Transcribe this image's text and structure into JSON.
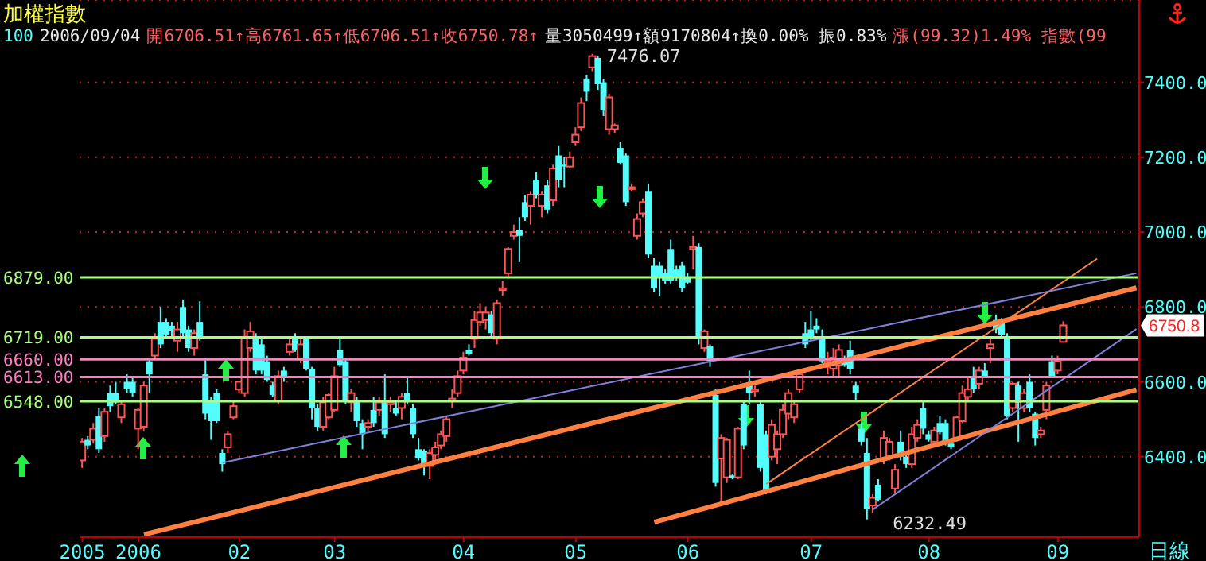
{
  "chart_data": {
    "type": "candlestick",
    "title": "加權指數",
    "annotations": [
      "100",
      "2006/09/04",
      "開6706.51↑高6761.65↑低6706.51↑收6750.78↑",
      "量3050499↑額9170804↑換0.00% 振0.83%",
      "漲(99.32)1.49% 指數(99",
      "7476.07",
      "6232.49",
      "6750.8",
      "日線"
    ],
    "categories": [
      "2005",
      null,
      null,
      null,
      null,
      null,
      null,
      null,
      null,
      null,
      "2006",
      null,
      null,
      null,
      null,
      null,
      null,
      null,
      null,
      null,
      null,
      null,
      null,
      null,
      null,
      null,
      null,
      null,
      "02",
      null,
      null,
      null,
      null,
      null,
      null,
      null,
      null,
      null,
      null,
      null,
      null,
      null,
      null,
      null,
      null,
      "03",
      null,
      null,
      null,
      null,
      null,
      null,
      null,
      null,
      null,
      null,
      null,
      null,
      null,
      null,
      null,
      null,
      null,
      null,
      null,
      null,
      null,
      null,
      "04",
      null,
      null,
      null,
      null,
      null,
      null,
      null,
      null,
      null,
      null,
      null,
      null,
      null,
      null,
      null,
      null,
      null,
      null,
      null,
      "05",
      null,
      null,
      null,
      null,
      null,
      null,
      null,
      null,
      null,
      null,
      null,
      null,
      null,
      null,
      null,
      null,
      null,
      null,
      null,
      "06",
      null,
      null,
      null,
      null,
      null,
      null,
      null,
      null,
      null,
      null,
      null,
      null,
      null,
      null,
      null,
      null,
      null,
      null,
      null,
      null,
      null,
      "07",
      null,
      null,
      null,
      null,
      null,
      null,
      null,
      null,
      null,
      null,
      null,
      null,
      null,
      null,
      null,
      null,
      null,
      null,
      null,
      null,
      "08",
      null,
      null,
      null,
      null,
      null,
      null,
      null,
      null,
      null,
      null,
      null,
      null,
      null,
      null,
      null,
      null,
      null,
      null,
      null,
      null,
      null,
      null,
      "09",
      null,
      null,
      null,
      null,
      null,
      null,
      null,
      null,
      null,
      null,
      null,
      null,
      null,
      null
    ],
    "ohlc": [
      [
        6390,
        6450,
        6370,
        6440
      ],
      [
        6445,
        6455,
        6420,
        6430
      ],
      [
        6445,
        6490,
        6435,
        6475
      ],
      [
        6510,
        6530,
        6410,
        6420
      ],
      [
        6455,
        6530,
        6440,
        6520
      ],
      [
        6570,
        6590,
        6520,
        6535
      ],
      [
        6570,
        6600,
        6540,
        6545
      ],
      [
        6505,
        6550,
        6490,
        6540
      ],
      [
        6600,
        6620,
        6570,
        6580
      ],
      [
        6600,
        6610,
        6560,
        6570
      ],
      [
        6475,
        6530,
        6420,
        6525
      ],
      [
        6480,
        6600,
        6470,
        6590
      ],
      [
        6655,
        6660,
        6570,
        6620
      ],
      [
        6670,
        6730,
        6660,
        6715
      ],
      [
        6760,
        6800,
        6690,
        6700
      ],
      [
        6760,
        6770,
        6720,
        6725
      ],
      [
        6750,
        6760,
        6720,
        6735
      ],
      [
        6710,
        6760,
        6680,
        6740
      ],
      [
        6800,
        6820,
        6720,
        6730
      ],
      [
        6740,
        6750,
        6680,
        6690
      ],
      [
        6690,
        6740,
        6670,
        6730
      ],
      [
        6760,
        6815,
        6710,
        6720
      ],
      [
        6620,
        6660,
        6500,
        6515
      ],
      [
        6550,
        6560,
        6445,
        6495
      ],
      [
        6570,
        6580,
        6490,
        6495
      ],
      [
        6410,
        6420,
        6360,
        6380
      ],
      [
        6425,
        6470,
        6410,
        6460
      ],
      [
        6505,
        6550,
        6500,
        6535
      ],
      [
        6580,
        6600,
        6570,
        6600
      ],
      [
        6570,
        6740,
        6560,
        6720
      ],
      [
        6690,
        6760,
        6680,
        6735
      ],
      [
        6715,
        6730,
        6620,
        6630
      ],
      [
        6700,
        6720,
        6620,
        6630
      ],
      [
        6655,
        6670,
        6600,
        6605
      ],
      [
        6590,
        6600,
        6560,
        6565
      ],
      [
        6550,
        6630,
        6540,
        6615
      ],
      [
        6630,
        6640,
        6600,
        6610
      ],
      [
        6680,
        6720,
        6670,
        6700
      ],
      [
        6720,
        6730,
        6680,
        6685
      ],
      [
        6660,
        6720,
        6650,
        6700
      ],
      [
        6715,
        6720,
        6630,
        6635
      ],
      [
        6635,
        6640,
        6500,
        6530
      ],
      [
        6530,
        6540,
        6470,
        6480
      ],
      [
        6480,
        6560,
        6470,
        6545
      ],
      [
        6505,
        6570,
        6500,
        6565
      ],
      [
        6525,
        6640,
        6520,
        6615
      ],
      [
        6685,
        6720,
        6640,
        6645
      ],
      [
        6655,
        6660,
        6540,
        6550
      ],
      [
        6545,
        6580,
        6520,
        6570
      ],
      [
        6550,
        6560,
        6480,
        6495
      ],
      [
        6490,
        6500,
        6420,
        6460
      ],
      [
        6480,
        6500,
        6470,
        6490
      ],
      [
        6525,
        6560,
        6480,
        6490
      ],
      [
        6525,
        6560,
        6510,
        6545
      ],
      [
        6545,
        6620,
        6450,
        6460
      ],
      [
        6540,
        6560,
        6520,
        6545
      ],
      [
        6530,
        6550,
        6510,
        6515
      ],
      [
        6530,
        6570,
        6500,
        6560
      ],
      [
        6570,
        6610,
        6540,
        6550
      ],
      [
        6530,
        6540,
        6450,
        6460
      ],
      [
        6420,
        6450,
        6390,
        6395
      ],
      [
        6415,
        6420,
        6350,
        6375
      ],
      [
        6375,
        6420,
        6340,
        6410
      ],
      [
        6405,
        6440,
        6390,
        6425
      ],
      [
        6430,
        6470,
        6420,
        6460
      ],
      [
        6455,
        6510,
        6440,
        6500
      ],
      [
        6550,
        6580,
        6530,
        6555
      ],
      [
        6570,
        6630,
        6560,
        6615
      ],
      [
        6630,
        6680,
        6620,
        6665
      ],
      [
        6685,
        6700,
        6670,
        6675
      ],
      [
        6715,
        6790,
        6690,
        6765
      ],
      [
        6760,
        6810,
        6750,
        6785
      ],
      [
        6765,
        6800,
        6740,
        6785
      ],
      [
        6780,
        6790,
        6720,
        6730
      ],
      [
        6715,
        6820,
        6700,
        6810
      ],
      [
        6845,
        6870,
        6830,
        6850
      ],
      [
        6890,
        6960,
        6880,
        6955
      ],
      [
        6990,
        7020,
        6980,
        7000
      ],
      [
        7005,
        7040,
        6920,
        6990
      ],
      [
        7080,
        7100,
        7030,
        7040
      ],
      [
        7070,
        7110,
        7020,
        7100
      ],
      [
        7140,
        7160,
        7090,
        7100
      ],
      [
        7070,
        7110,
        7040,
        7100
      ],
      [
        7125,
        7140,
        7050,
        7060
      ],
      [
        7085,
        7180,
        7070,
        7170
      ],
      [
        7205,
        7230,
        7120,
        7140
      ],
      [
        7180,
        7200,
        7120,
        7175
      ],
      [
        7175,
        7215,
        7170,
        7200
      ],
      [
        7240,
        7280,
        7230,
        7260
      ],
      [
        7280,
        7360,
        7270,
        7345
      ],
      [
        7410,
        7420,
        7350,
        7375
      ],
      [
        7440,
        7476.07,
        7430,
        7470
      ],
      [
        7465,
        7470,
        7380,
        7395
      ],
      [
        7400,
        7410,
        7310,
        7325
      ],
      [
        7275,
        7370,
        7260,
        7360
      ],
      [
        7275,
        7290,
        7265,
        7285
      ],
      [
        7225,
        7240,
        7180,
        7185
      ],
      [
        7205,
        7210,
        7070,
        7080
      ],
      [
        7115,
        7130,
        7110,
        7120
      ],
      [
        6990,
        7050,
        6980,
        7035
      ],
      [
        7050,
        7090,
        7040,
        7080
      ],
      [
        7110,
        7130,
        6930,
        6940
      ],
      [
        6910,
        6930,
        6840,
        6850
      ],
      [
        6910,
        6920,
        6830,
        6880
      ],
      [
        6890,
        6900,
        6860,
        6870
      ],
      [
        6955,
        6980,
        6860,
        6870
      ],
      [
        6900,
        6910,
        6870,
        6880
      ],
      [
        6910,
        6920,
        6840,
        6850
      ],
      [
        6880,
        6890,
        6860,
        6865
      ],
      [
        6955,
        6990,
        6900,
        6960
      ],
      [
        6960,
        6970,
        6700,
        6715
      ],
      [
        6690,
        6740,
        6680,
        6735
      ],
      [
        6695,
        6700,
        6640,
        6655
      ],
      [
        6565,
        6580,
        6320,
        6330
      ],
      [
        6395,
        6460,
        6275,
        6450
      ],
      [
        6345,
        6450,
        6330,
        6445
      ],
      [
        6350,
        6355,
        6340,
        6342
      ],
      [
        6345,
        6480,
        6340,
        6475
      ],
      [
        6540,
        6550,
        6420,
        6430
      ],
      [
        6590,
        6630,
        6540,
        6570
      ],
      [
        6575,
        6590,
        6560,
        6580
      ],
      [
        6540,
        6550,
        6360,
        6370
      ],
      [
        6460,
        6470,
        6300,
        6310
      ],
      [
        6400,
        6500,
        6390,
        6485
      ],
      [
        6420,
        6470,
        6380,
        6460
      ],
      [
        6460,
        6540,
        6450,
        6525
      ],
      [
        6515,
        6580,
        6500,
        6570
      ],
      [
        6505,
        6550,
        6490,
        6540
      ],
      [
        6580,
        6630,
        6570,
        6620
      ],
      [
        6730,
        6760,
        6690,
        6700
      ],
      [
        6740,
        6790,
        6710,
        6720
      ],
      [
        6750,
        6770,
        6730,
        6740
      ],
      [
        6715,
        6740,
        6650,
        6655
      ],
      [
        6640,
        6680,
        6620,
        6655
      ],
      [
        6635,
        6690,
        6610,
        6665
      ],
      [
        6645,
        6700,
        6610,
        6685
      ],
      [
        6655,
        6670,
        6640,
        6645
      ],
      [
        6685,
        6710,
        6620,
        6635
      ],
      [
        6590,
        6600,
        6550,
        6570
      ],
      [
        6475,
        6490,
        6430,
        6440
      ],
      [
        6410,
        6450,
        6232.49,
        6260
      ],
      [
        6270,
        6300,
        6250,
        6290
      ],
      [
        6325,
        6340,
        6280,
        6285
      ],
      [
        6395,
        6470,
        6380,
        6450
      ],
      [
        6400,
        6450,
        6390,
        6440
      ],
      [
        6315,
        6380,
        6300,
        6365
      ],
      [
        6440,
        6470,
        6390,
        6400
      ],
      [
        6400,
        6410,
        6370,
        6380
      ],
      [
        6380,
        6480,
        6370,
        6460
      ],
      [
        6450,
        6500,
        6440,
        6485
      ],
      [
        6530,
        6550,
        6460,
        6475
      ],
      [
        6460,
        6470,
        6440,
        6445
      ],
      [
        6440,
        6480,
        6430,
        6470
      ],
      [
        6490,
        6510,
        6460,
        6465
      ],
      [
        6490,
        6500,
        6430,
        6440
      ],
      [
        6435,
        6440,
        6420,
        6425
      ],
      [
        6445,
        6510,
        6440,
        6505
      ],
      [
        6495,
        6590,
        6490,
        6570
      ],
      [
        6560,
        6610,
        6550,
        6580
      ],
      [
        6615,
        6640,
        6570,
        6580
      ],
      [
        6595,
        6640,
        6580,
        6630
      ],
      [
        6630,
        6650,
        6610,
        6615
      ],
      [
        6690,
        6720,
        6650,
        6700
      ],
      [
        6765,
        6780,
        6730,
        6740
      ],
      [
        6765,
        6770,
        6720,
        6725
      ],
      [
        6715,
        6730,
        6500,
        6510
      ],
      [
        6530,
        6600,
        6520,
        6595
      ],
      [
        6590,
        6600,
        6440,
        6545
      ],
      [
        6530,
        6580,
        6520,
        6570
      ],
      [
        6600,
        6620,
        6520,
        6530
      ],
      [
        6515,
        6520,
        6430,
        6450
      ],
      [
        6460,
        6480,
        6450,
        6470
      ],
      [
        6525,
        6600,
        6500,
        6590
      ],
      [
        6655,
        6670,
        6610,
        6615
      ],
      [
        6630,
        6670,
        6620,
        6655
      ],
      [
        6706.51,
        6761.65,
        6706.51,
        6750.78
      ],
      null,
      null,
      null,
      null,
      null,
      null,
      null,
      null,
      null,
      null,
      null,
      null,
      null
    ],
    "colors": [
      "#ff5454",
      "#54fcfc",
      "#ff5454",
      "#54fcfc",
      "#ff5454",
      "#54fcfc",
      "#54fcfc",
      "#ff5454",
      "#54fcfc",
      "#54fcfc",
      "#ff5454",
      "#ff5454",
      "#54fcfc",
      "#ff5454",
      "#54fcfc",
      "#54fcfc",
      "#54fcfc",
      "#ff5454",
      "#54fcfc",
      "#54fcfc",
      "#ff5454",
      "#54fcfc",
      "#54fcfc",
      "#54fcfc",
      "#54fcfc",
      "#54fcfc",
      "#ff5454",
      "#ff5454",
      "#ff5454",
      "#ff5454",
      "#ff5454",
      "#54fcfc",
      "#54fcfc",
      "#54fcfc",
      "#54fcfc",
      "#ff5454",
      "#54fcfc",
      "#ff5454",
      "#54fcfc",
      "#ff5454",
      "#54fcfc",
      "#54fcfc",
      "#54fcfc",
      "#ff5454",
      "#ff5454",
      "#ff5454",
      "#54fcfc",
      "#54fcfc",
      "#ff5454",
      "#54fcfc",
      "#54fcfc",
      "#ff5454",
      "#54fcfc",
      "#ff5454",
      "#54fcfc",
      "#ff5454",
      "#54fcfc",
      "#ff5454",
      "#54fcfc",
      "#54fcfc",
      "#54fcfc",
      "#54fcfc",
      "#ff5454",
      "#ff5454",
      "#ff5454",
      "#ff5454",
      "#ff5454",
      "#ff5454",
      "#ff5454",
      "#54fcfc",
      "#ff5454",
      "#ff5454",
      "#ff5454",
      "#54fcfc",
      "#ff5454",
      "#ff5454",
      "#ff5454",
      "#ff5454",
      "#54fcfc",
      "#54fcfc",
      "#ff5454",
      "#54fcfc",
      "#ff5454",
      "#54fcfc",
      "#ff5454",
      "#54fcfc",
      "#54fcfc",
      "#ff5454",
      "#ff5454",
      "#ff5454",
      "#54fcfc",
      "#ff5454",
      "#54fcfc",
      "#54fcfc",
      "#ff5454",
      "#ff5454",
      "#54fcfc",
      "#54fcfc",
      "#ff5454",
      "#ff5454",
      "#ff5454",
      "#54fcfc",
      "#54fcfc",
      "#54fcfc",
      "#54fcfc",
      "#54fcfc",
      "#54fcfc",
      "#54fcfc",
      "#54fcfc",
      "#ff5454",
      "#54fcfc",
      "#ff5454",
      "#54fcfc",
      "#54fcfc",
      "#ff5454",
      "#ff5454",
      "#54fcfc",
      "#ff5454",
      "#54fcfc",
      "#54fcfc",
      "#ff5454",
      "#54fcfc",
      "#54fcfc",
      "#ff5454",
      "#ff5454",
      "#ff5454",
      "#ff5454",
      "#ff5454",
      "#ff5454",
      "#54fcfc",
      "#54fcfc",
      "#54fcfc",
      "#54fcfc",
      "#ff5454",
      "#ff5454",
      "#ff5454",
      "#54fcfc",
      "#54fcfc",
      "#54fcfc",
      "#54fcfc",
      "#54fcfc",
      "#ff5454",
      "#54fcfc",
      "#ff5454",
      "#ff5454",
      "#ff5454",
      "#54fcfc",
      "#54fcfc",
      "#ff5454",
      "#ff5454",
      "#54fcfc",
      "#54fcfc",
      "#ff5454",
      "#54fcfc",
      "#54fcfc",
      "#54fcfc",
      "#ff5454",
      "#ff5454",
      "#ff5454",
      "#54fcfc",
      "#ff5454",
      "#54fcfc",
      "#ff5454",
      "#54fcfc",
      "#54fcfc",
      "#54fcfc",
      "#ff5454",
      "#54fcfc",
      "#ff5454",
      "#54fcfc",
      "#54fcfc",
      "#ff5454",
      "#ff5454",
      "#54fcfc",
      "#ff5454",
      "#ff5454",
      null,
      null,
      null,
      null,
      null,
      null,
      null,
      null,
      null,
      null,
      null,
      null,
      null
    ],
    "series": [
      {
        "type": "line",
        "color": "#ff8040",
        "values": [
          null,
          null,
          null,
          null,
          null,
          null,
          null,
          null,
          null,
          null,
          null,
          6192,
          null,
          null,
          null,
          null,
          null,
          null,
          null,
          null,
          null,
          null,
          null,
          null,
          null,
          null,
          null,
          null,
          null,
          null,
          null,
          null,
          null,
          null,
          null,
          null,
          null,
          null,
          null,
          null,
          null,
          null,
          null,
          null,
          null,
          null,
          null,
          null,
          null,
          null,
          null,
          null,
          null,
          null,
          null,
          null,
          null,
          null,
          null,
          null,
          null,
          null,
          null,
          null,
          null,
          null,
          null,
          null,
          null,
          null,
          null,
          null,
          null,
          null,
          null,
          null,
          null,
          null,
          null,
          null,
          null,
          null,
          null,
          null,
          null,
          null,
          null,
          null,
          null,
          null,
          null,
          null,
          null,
          null,
          null,
          null,
          null,
          null,
          null,
          null,
          null,
          null,
          null,
          null,
          null,
          null,
          null,
          null,
          null,
          null,
          null,
          null,
          null,
          null,
          null,
          null,
          null,
          null,
          null,
          null,
          null,
          null,
          null,
          null,
          null,
          null,
          null,
          null,
          null,
          null,
          null,
          null,
          null,
          null,
          null,
          null,
          null,
          null,
          null,
          null,
          null,
          null,
          null,
          null,
          null,
          null,
          null,
          null,
          null,
          null,
          null,
          null,
          null,
          null,
          null,
          null,
          null,
          null,
          null,
          null,
          null,
          null,
          null,
          null,
          null,
          null,
          null,
          null,
          null,
          null,
          null,
          null,
          null,
          null,
          null,
          null,
          null,
          null,
          null,
          null,
          null,
          null,
          null,
          null,
          null,
          null,
          null,
          null,
          6851
        ]
      },
      {
        "type": "line",
        "color": "#ff8040",
        "values": [
          null,
          null,
          null,
          null,
          null,
          null,
          null,
          null,
          null,
          null,
          null,
          null,
          null,
          null,
          null,
          null,
          null,
          null,
          null,
          null,
          null,
          null,
          null,
          null,
          null,
          null,
          null,
          null,
          null,
          null,
          null,
          null,
          null,
          null,
          null,
          null,
          null,
          null,
          null,
          null,
          null,
          null,
          null,
          null,
          null,
          null,
          null,
          null,
          null,
          null,
          null,
          null,
          null,
          null,
          null,
          null,
          null,
          null,
          null,
          null,
          null,
          null,
          null,
          null,
          null,
          null,
          null,
          null,
          null,
          null,
          null,
          null,
          null,
          null,
          null,
          null,
          null,
          null,
          null,
          null,
          null,
          null,
          null,
          null,
          null,
          null,
          null,
          null,
          null,
          null,
          null,
          null,
          null,
          null,
          null,
          null,
          null,
          null,
          null,
          null,
          null,
          null,
          6225,
          null,
          null,
          null,
          null,
          null,
          null,
          null,
          null,
          null,
          null,
          null,
          null,
          null,
          null,
          null,
          null,
          null,
          null,
          null,
          null,
          null,
          null,
          null,
          null,
          null,
          null,
          null,
          null,
          null,
          null,
          null,
          null,
          null,
          null,
          null,
          null,
          null,
          null,
          null,
          null,
          null,
          null,
          null,
          null,
          null,
          null,
          null,
          null,
          null,
          null,
          null,
          null,
          null,
          null,
          null,
          null,
          null,
          null,
          null,
          null,
          null,
          null,
          null,
          null,
          null,
          null,
          null,
          null,
          null,
          null,
          null,
          null,
          null,
          null,
          null,
          null,
          null,
          null,
          null,
          null,
          null,
          null,
          null,
          null,
          null,
          6579
        ]
      },
      {
        "type": "line",
        "color": "#ff8040",
        "values": [
          null,
          null,
          null,
          null,
          null,
          null,
          null,
          null,
          null,
          null,
          null,
          null,
          null,
          null,
          null,
          null,
          null,
          null,
          null,
          null,
          null,
          null,
          null,
          null,
          null,
          null,
          null,
          null,
          null,
          null,
          null,
          null,
          null,
          null,
          null,
          null,
          null,
          null,
          null,
          null,
          null,
          null,
          null,
          null,
          null,
          null,
          null,
          null,
          null,
          null,
          null,
          null,
          null,
          null,
          null,
          null,
          null,
          null,
          null,
          null,
          null,
          null,
          null,
          null,
          null,
          null,
          null,
          null,
          null,
          null,
          null,
          null,
          null,
          null,
          null,
          null,
          null,
          null,
          null,
          null,
          null,
          null,
          null,
          null,
          null,
          null,
          null,
          null,
          null,
          null,
          null,
          null,
          null,
          null,
          null,
          null,
          null,
          null,
          null,
          null,
          null,
          null,
          null,
          null,
          null,
          null,
          null,
          null,
          null,
          null,
          null,
          null,
          null,
          null,
          null,
          null,
          null,
          null,
          null,
          null,
          null,
          null,
          6327,
          null,
          null,
          null,
          null,
          null,
          null,
          null,
          null,
          null,
          null,
          null,
          null,
          null,
          null,
          null,
          null,
          null,
          null,
          null,
          null,
          null,
          null,
          null,
          null,
          null,
          null,
          null,
          null,
          null,
          null,
          null,
          null,
          null,
          null,
          null,
          null,
          null,
          null,
          null,
          null,
          null,
          null,
          null,
          null,
          null,
          null,
          null,
          null,
          null,
          null,
          null,
          null,
          null,
          null,
          null,
          null,
          null,
          null,
          6929,
          null,
          null,
          null,
          null,
          null,
          null,
          null
        ]
      },
      {
        "type": "line",
        "color": "#8080d8",
        "values": [
          null,
          null,
          null,
          null,
          null,
          null,
          null,
          null,
          null,
          null,
          null,
          null,
          null,
          null,
          null,
          null,
          null,
          null,
          null,
          null,
          null,
          null,
          null,
          null,
          null,
          6384,
          null,
          null,
          null,
          null,
          null,
          null,
          null,
          null,
          null,
          null,
          null,
          null,
          null,
          null,
          null,
          null,
          null,
          null,
          null,
          null,
          null,
          null,
          null,
          null,
          null,
          null,
          null,
          null,
          null,
          null,
          null,
          null,
          null,
          null,
          null,
          null,
          null,
          null,
          null,
          null,
          null,
          null,
          null,
          null,
          null,
          null,
          null,
          null,
          null,
          null,
          null,
          null,
          null,
          null,
          null,
          null,
          null,
          null,
          null,
          null,
          null,
          null,
          null,
          null,
          null,
          null,
          null,
          null,
          null,
          null,
          null,
          null,
          null,
          null,
          null,
          null,
          null,
          null,
          null,
          null,
          null,
          null,
          null,
          null,
          null,
          null,
          null,
          null,
          null,
          null,
          null,
          null,
          null,
          null,
          null,
          null,
          null,
          null,
          null,
          null,
          null,
          null,
          null,
          null,
          null,
          null,
          null,
          null,
          null,
          null,
          null,
          null,
          null,
          null,
          null,
          null,
          null,
          null,
          null,
          null,
          null,
          null,
          null,
          null,
          null,
          null,
          null,
          null,
          null,
          null,
          null,
          null,
          null,
          null,
          null,
          null,
          null,
          null,
          null,
          null,
          null,
          null,
          null,
          null,
          null,
          null,
          null,
          null,
          null,
          null,
          null,
          null,
          null,
          null,
          null,
          null,
          null,
          null,
          null,
          null,
          null,
          null,
          6890
        ]
      },
      {
        "type": "line",
        "color": "#8080d8",
        "values": [
          null,
          null,
          null,
          null,
          null,
          null,
          null,
          null,
          null,
          null,
          null,
          null,
          null,
          null,
          null,
          null,
          null,
          null,
          null,
          null,
          null,
          null,
          null,
          null,
          null,
          null,
          null,
          null,
          null,
          null,
          null,
          null,
          null,
          null,
          null,
          null,
          null,
          null,
          null,
          null,
          null,
          null,
          null,
          null,
          null,
          null,
          null,
          null,
          null,
          null,
          null,
          null,
          null,
          null,
          null,
          null,
          null,
          null,
          null,
          null,
          null,
          null,
          null,
          null,
          null,
          null,
          null,
          null,
          null,
          null,
          null,
          null,
          null,
          null,
          null,
          null,
          null,
          null,
          null,
          null,
          null,
          null,
          null,
          null,
          null,
          null,
          null,
          null,
          null,
          null,
          null,
          null,
          null,
          null,
          null,
          null,
          null,
          null,
          null,
          null,
          null,
          null,
          null,
          null,
          null,
          null,
          null,
          null,
          null,
          null,
          null,
          null,
          null,
          null,
          null,
          null,
          null,
          null,
          null,
          null,
          null,
          null,
          null,
          null,
          null,
          null,
          null,
          null,
          null,
          null,
          null,
          null,
          null,
          null,
          null,
          null,
          null,
          null,
          null,
          null,
          null,
          6259,
          null,
          null,
          null,
          null,
          null,
          null,
          null,
          null,
          null,
          null,
          null,
          null,
          null,
          null,
          null,
          null,
          null,
          null,
          null,
          null,
          null,
          null,
          null,
          null,
          null,
          null,
          null,
          null,
          null,
          null,
          null,
          null,
          null,
          null,
          null,
          null,
          null,
          null,
          null,
          null,
          null,
          null,
          null,
          null,
          null,
          null,
          6741
        ]
      }
    ],
    "ref_lines": [
      {
        "axis": "y",
        "value": 6879,
        "label": "6879.00",
        "color": "#a8ff80"
      },
      {
        "axis": "y",
        "value": 6719,
        "label": "6719.00",
        "color": "#a8ff80"
      },
      {
        "axis": "y",
        "value": 6660,
        "label": "6660.00",
        "color": "#ff80c0"
      },
      {
        "axis": "y",
        "value": 6613,
        "label": "6613.00",
        "color": "#ff80c0"
      },
      {
        "axis": "y",
        "value": 6548,
        "label": "6548.00",
        "color": "#a8ff80"
      }
    ],
    "ylim": [
      6185,
      7620
    ],
    "yticks": [
      {
        "value": 6400,
        "label": "6400.0"
      },
      {
        "value": 6600,
        "label": "6600.0"
      },
      {
        "value": 6800,
        "label": "6800.0"
      },
      {
        "value": 7000,
        "label": "7000.0"
      },
      {
        "value": 7200,
        "label": "7200.0"
      },
      {
        "value": 7400,
        "label": "7400.0"
      }
    ],
    "grid": "y"
  }
}
